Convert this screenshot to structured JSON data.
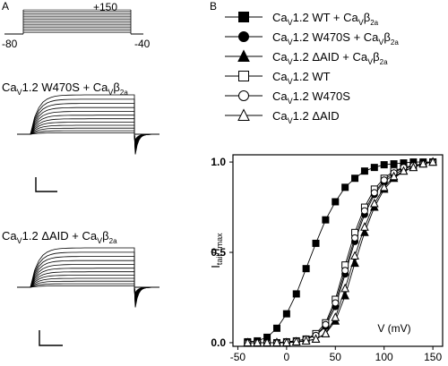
{
  "panels": {
    "a": "A",
    "b": "B"
  },
  "protocol": {
    "holding": "-80",
    "top": "+150",
    "end": "-40"
  },
  "trace_titles": [
    {
      "base": "Ca",
      "sub1": "V",
      "mid": "1.2 W470S + Ca",
      "sub2": "V",
      "beta": "β",
      "sub3": "2a"
    },
    {
      "base": "Ca",
      "sub1": "V",
      "mid": "1.2 ΔAID + Ca",
      "sub2": "V",
      "beta": "β",
      "sub3": "2a"
    }
  ],
  "chart_data": {
    "type": "scatter",
    "title": "",
    "xlabel": "V (mV)",
    "ylabel": "I_tail/I_max",
    "ylabel_parts": {
      "main": "I",
      "sub1": "tail",
      "slash": "/I",
      "sub2": "max"
    },
    "xlim": [
      -55,
      160
    ],
    "ylim": [
      -0.02,
      1.04
    ],
    "xticks": [
      -50,
      0,
      50,
      100,
      150
    ],
    "yticks": [
      0.0,
      0.5,
      1.0
    ],
    "ytick_labels": [
      "0.0",
      "0.5",
      "1.0"
    ],
    "grid": false,
    "legend_position": "top",
    "x": [
      -40,
      -30,
      -20,
      -10,
      0,
      10,
      20,
      30,
      40,
      50,
      60,
      70,
      80,
      90,
      100,
      110,
      120,
      130,
      140,
      150
    ],
    "series": [
      {
        "name": "CaV1.2 WT + CaVβ2a",
        "legend": {
          "base": "Ca",
          "sub1": "V",
          "mid": "1.2 WT + Ca",
          "sub2": "V",
          "beta": "β",
          "sub3": "2a"
        },
        "marker": "square",
        "filled": true,
        "values": [
          0.005,
          0.01,
          0.03,
          0.08,
          0.16,
          0.27,
          0.41,
          0.55,
          0.68,
          0.78,
          0.86,
          0.91,
          0.95,
          0.97,
          0.985,
          0.99,
          0.995,
          1.0,
          1.0,
          1.0
        ]
      },
      {
        "name": "CaV1.2 W470S + CaVβ2a",
        "legend": {
          "base": "Ca",
          "sub1": "V",
          "mid": "1.2 W470S + Ca",
          "sub2": "V",
          "beta": "β",
          "sub3": "2a"
        },
        "marker": "circle",
        "filled": true,
        "values": [
          0.0,
          0.0,
          0.0,
          0.0,
          0.005,
          0.01,
          0.02,
          0.04,
          0.09,
          0.2,
          0.38,
          0.56,
          0.71,
          0.82,
          0.89,
          0.93,
          0.96,
          0.98,
          0.99,
          1.0
        ]
      },
      {
        "name": "CaV1.2 ΔAID + CaVβ2a",
        "legend": {
          "base": "Ca",
          "sub1": "V",
          "mid": "1.2 ΔAID + Ca",
          "sub2": "V",
          "beta": "β",
          "sub3": "2a"
        },
        "marker": "triangle",
        "filled": true,
        "values": [
          0.0,
          0.0,
          0.0,
          0.0,
          0.0,
          0.005,
          0.01,
          0.02,
          0.05,
          0.12,
          0.26,
          0.44,
          0.61,
          0.75,
          0.85,
          0.91,
          0.95,
          0.97,
          0.99,
          1.0
        ]
      },
      {
        "name": "CaV1.2 WT",
        "legend": {
          "base": "Ca",
          "sub1": "V",
          "mid": "1.2 WT",
          "sub2": "",
          "beta": "",
          "sub3": ""
        },
        "marker": "square",
        "filled": false,
        "values": [
          0.0,
          0.0,
          0.0,
          0.0,
          0.005,
          0.01,
          0.02,
          0.05,
          0.11,
          0.24,
          0.43,
          0.61,
          0.75,
          0.85,
          0.91,
          0.95,
          0.97,
          0.98,
          0.99,
          1.0
        ]
      },
      {
        "name": "CaV1.2 W470S",
        "legend": {
          "base": "Ca",
          "sub1": "V",
          "mid": "1.2 W470S",
          "sub2": "",
          "beta": "",
          "sub3": ""
        },
        "marker": "circle",
        "filled": false,
        "values": [
          0.0,
          0.0,
          0.0,
          0.0,
          0.005,
          0.01,
          0.02,
          0.04,
          0.1,
          0.22,
          0.4,
          0.58,
          0.73,
          0.83,
          0.9,
          0.94,
          0.97,
          0.98,
          0.99,
          1.0
        ]
      },
      {
        "name": "CaV1.2 ΔAID",
        "legend": {
          "base": "Ca",
          "sub1": "V",
          "mid": "1.2 ΔAID",
          "sub2": "",
          "beta": "",
          "sub3": ""
        },
        "marker": "triangle",
        "filled": false,
        "values": [
          0.0,
          0.0,
          0.0,
          0.0,
          0.0,
          0.005,
          0.01,
          0.02,
          0.05,
          0.14,
          0.3,
          0.48,
          0.64,
          0.77,
          0.86,
          0.92,
          0.95,
          0.97,
          0.99,
          1.0
        ]
      }
    ]
  }
}
